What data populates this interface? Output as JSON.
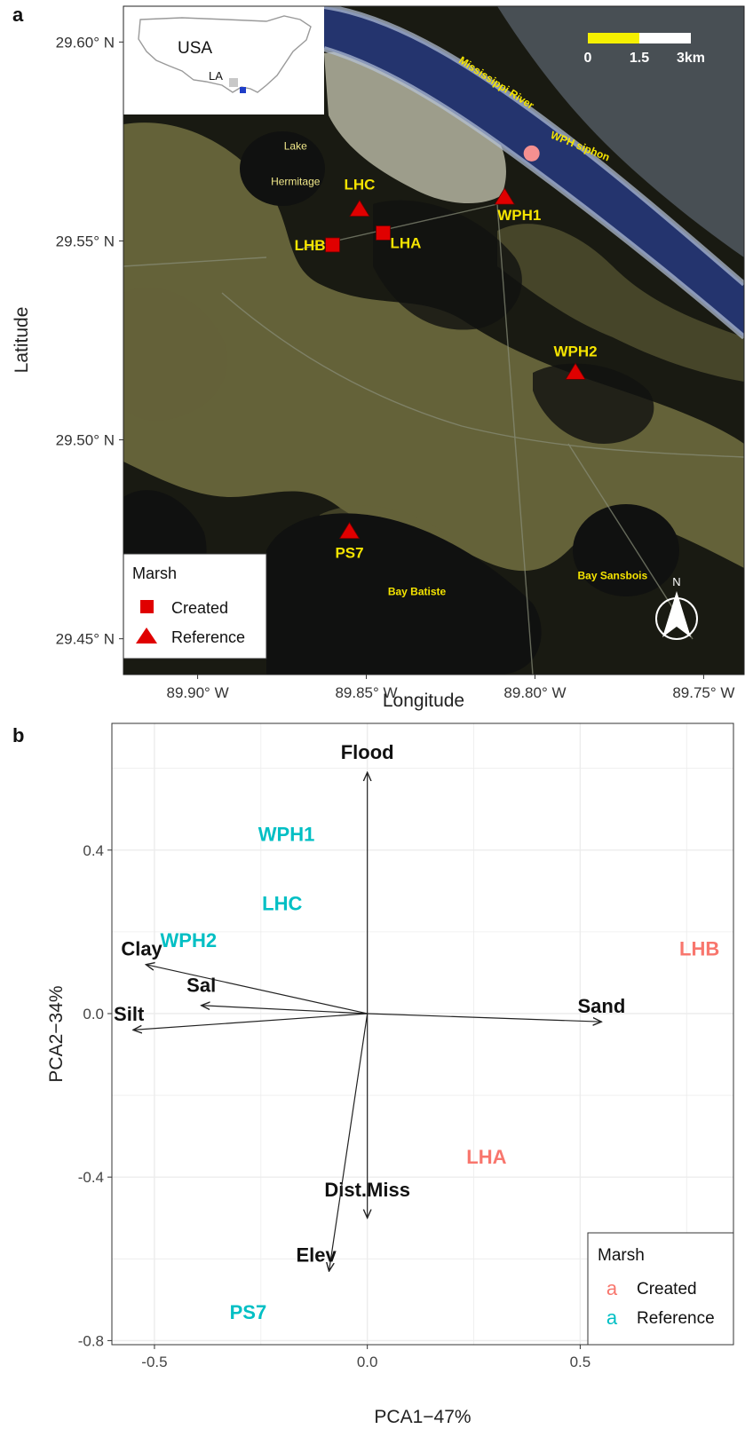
{
  "panel_a": {
    "label": "a",
    "xlabel": "Longitude",
    "ylabel": "Latitude",
    "lon_ticks": [
      {
        "value": -89.9,
        "label": "89.90° W"
      },
      {
        "value": -89.85,
        "label": "89.85° W"
      },
      {
        "value": -89.8,
        "label": "89.80° W"
      },
      {
        "value": -89.75,
        "label": "89.75° W"
      }
    ],
    "lat_ticks": [
      {
        "value": 29.6,
        "label": "29.60° N"
      },
      {
        "value": 29.55,
        "label": "29.55° N"
      },
      {
        "value": 29.5,
        "label": "29.50° N"
      },
      {
        "value": 29.45,
        "label": "29.45° N"
      }
    ],
    "xlim": [
      -89.922,
      -89.738
    ],
    "ylim": [
      29.441,
      29.609
    ],
    "inset": {
      "country": "USA",
      "state": "LA"
    },
    "scale_bar": {
      "labels": [
        "0",
        "1.5",
        "3km"
      ]
    },
    "north_label": "N",
    "places": [
      {
        "name": "Mississippi River",
        "lon": -89.812,
        "lat": 29.589
      },
      {
        "name": "WPH siphon",
        "lon": -89.787,
        "lat": 29.573
      },
      {
        "name": "Lake",
        "lon": -89.871,
        "lat": 29.573
      },
      {
        "name": "Hermitage",
        "lon": -89.871,
        "lat": 29.564
      },
      {
        "name": "Bay Batiste",
        "lon": -89.835,
        "lat": 29.461
      },
      {
        "name": "Bay Sansbois",
        "lon": -89.777,
        "lat": 29.465
      }
    ],
    "sites": [
      {
        "name": "LHC",
        "type": "Reference",
        "lon": -89.852,
        "lat": 29.558
      },
      {
        "name": "LHB",
        "type": "Created",
        "lon": -89.86,
        "lat": 29.549
      },
      {
        "name": "LHA",
        "type": "Created",
        "lon": -89.845,
        "lat": 29.552
      },
      {
        "name": "WPH1",
        "type": "Reference",
        "lon": -89.809,
        "lat": 29.561
      },
      {
        "name": "WPH2",
        "type": "Reference",
        "lon": -89.788,
        "lat": 29.517
      },
      {
        "name": "PS7",
        "type": "Reference",
        "lon": -89.855,
        "lat": 29.477
      }
    ],
    "siphon_point": {
      "lon": -89.801,
      "lat": 29.572
    },
    "legend": {
      "title": "Marsh",
      "items": [
        "Created",
        "Reference"
      ]
    }
  },
  "chart_data": {
    "type": "scatter",
    "label": "b",
    "xlabel": "PCA1−47%",
    "ylabel": "PCA2−34%",
    "xlim": [
      -0.6,
      0.86
    ],
    "ylim": [
      -0.81,
      0.71
    ],
    "xticks": [
      -0.5,
      0.0,
      0.5
    ],
    "xtick_labels": [
      "-0.5",
      "0.0",
      "0.5"
    ],
    "yticks": [
      0.4,
      0.0,
      -0.4,
      -0.8
    ],
    "ytick_labels": [
      "0.4",
      "0.0",
      "-0.4",
      "-0.8"
    ],
    "grid": true,
    "colors": {
      "Created": "#f8766d",
      "Reference": "#00bfc4"
    },
    "points": [
      {
        "name": "WPH1",
        "group": "Reference",
        "x": -0.19,
        "y": 0.44
      },
      {
        "name": "LHC",
        "group": "Reference",
        "x": -0.2,
        "y": 0.27
      },
      {
        "name": "WPH2",
        "group": "Reference",
        "x": -0.42,
        "y": 0.18
      },
      {
        "name": "PS7",
        "group": "Reference",
        "x": -0.28,
        "y": -0.73
      },
      {
        "name": "LHB",
        "group": "Created",
        "x": 0.78,
        "y": 0.16
      },
      {
        "name": "LHA",
        "group": "Created",
        "x": 0.28,
        "y": -0.35
      }
    ],
    "loadings": [
      {
        "name": "Flood",
        "x": 0.0,
        "y": 0.59,
        "lx": 0.0,
        "ly": 0.64
      },
      {
        "name": "Clay",
        "x": -0.52,
        "y": 0.12,
        "lx": -0.53,
        "ly": 0.16
      },
      {
        "name": "Sal",
        "x": -0.39,
        "y": 0.02,
        "lx": -0.39,
        "ly": 0.07
      },
      {
        "name": "Silt",
        "x": -0.55,
        "y": -0.04,
        "lx": -0.56,
        "ly": 0.0
      },
      {
        "name": "Sand",
        "x": 0.55,
        "y": -0.02,
        "lx": 0.55,
        "ly": 0.02
      },
      {
        "name": "Dist.Miss",
        "x": 0.0,
        "y": -0.5,
        "lx": 0.0,
        "ly": -0.43
      },
      {
        "name": "Elev",
        "x": -0.09,
        "y": -0.63,
        "lx": -0.12,
        "ly": -0.59
      }
    ],
    "legend": {
      "title": "Marsh",
      "glyph": "a",
      "items": [
        "Created",
        "Reference"
      ]
    }
  }
}
